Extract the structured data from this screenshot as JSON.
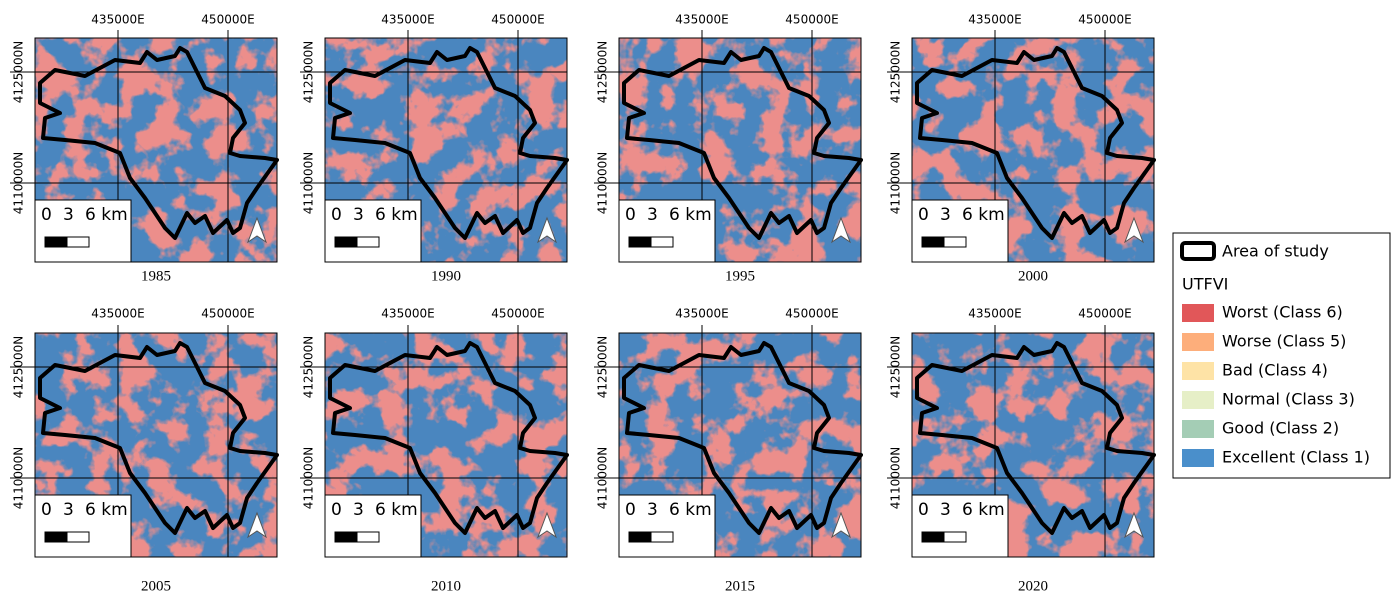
{
  "panels": [
    {
      "year": "1985"
    },
    {
      "year": "1990"
    },
    {
      "year": "1995"
    },
    {
      "year": "2000"
    },
    {
      "year": "2005"
    },
    {
      "year": "2010"
    },
    {
      "year": "2015"
    },
    {
      "year": "2020"
    }
  ],
  "map_grid": {
    "easting_labels": [
      "435000E",
      "450000E"
    ],
    "northing_labels": [
      "4125000N",
      "4110000N"
    ]
  },
  "scale_bar": {
    "labels": [
      "0",
      "3",
      "6 km"
    ]
  },
  "legend": {
    "boundary": "Area of study",
    "title": "UTFVI",
    "classes": [
      {
        "label": "Worst (Class 6)",
        "color": "#e15759"
      },
      {
        "label": "Worse (Class 5)",
        "color": "#fdae7b"
      },
      {
        "label": "Bad (Class 4)",
        "color": "#fee3a6"
      },
      {
        "label": "Normal (Class 3)",
        "color": "#e6efc7"
      },
      {
        "label": "Good (Class 2)",
        "color": "#a4cdb5"
      },
      {
        "label": "Excellent (Class 1)",
        "color": "#4a8fcb"
      }
    ]
  }
}
